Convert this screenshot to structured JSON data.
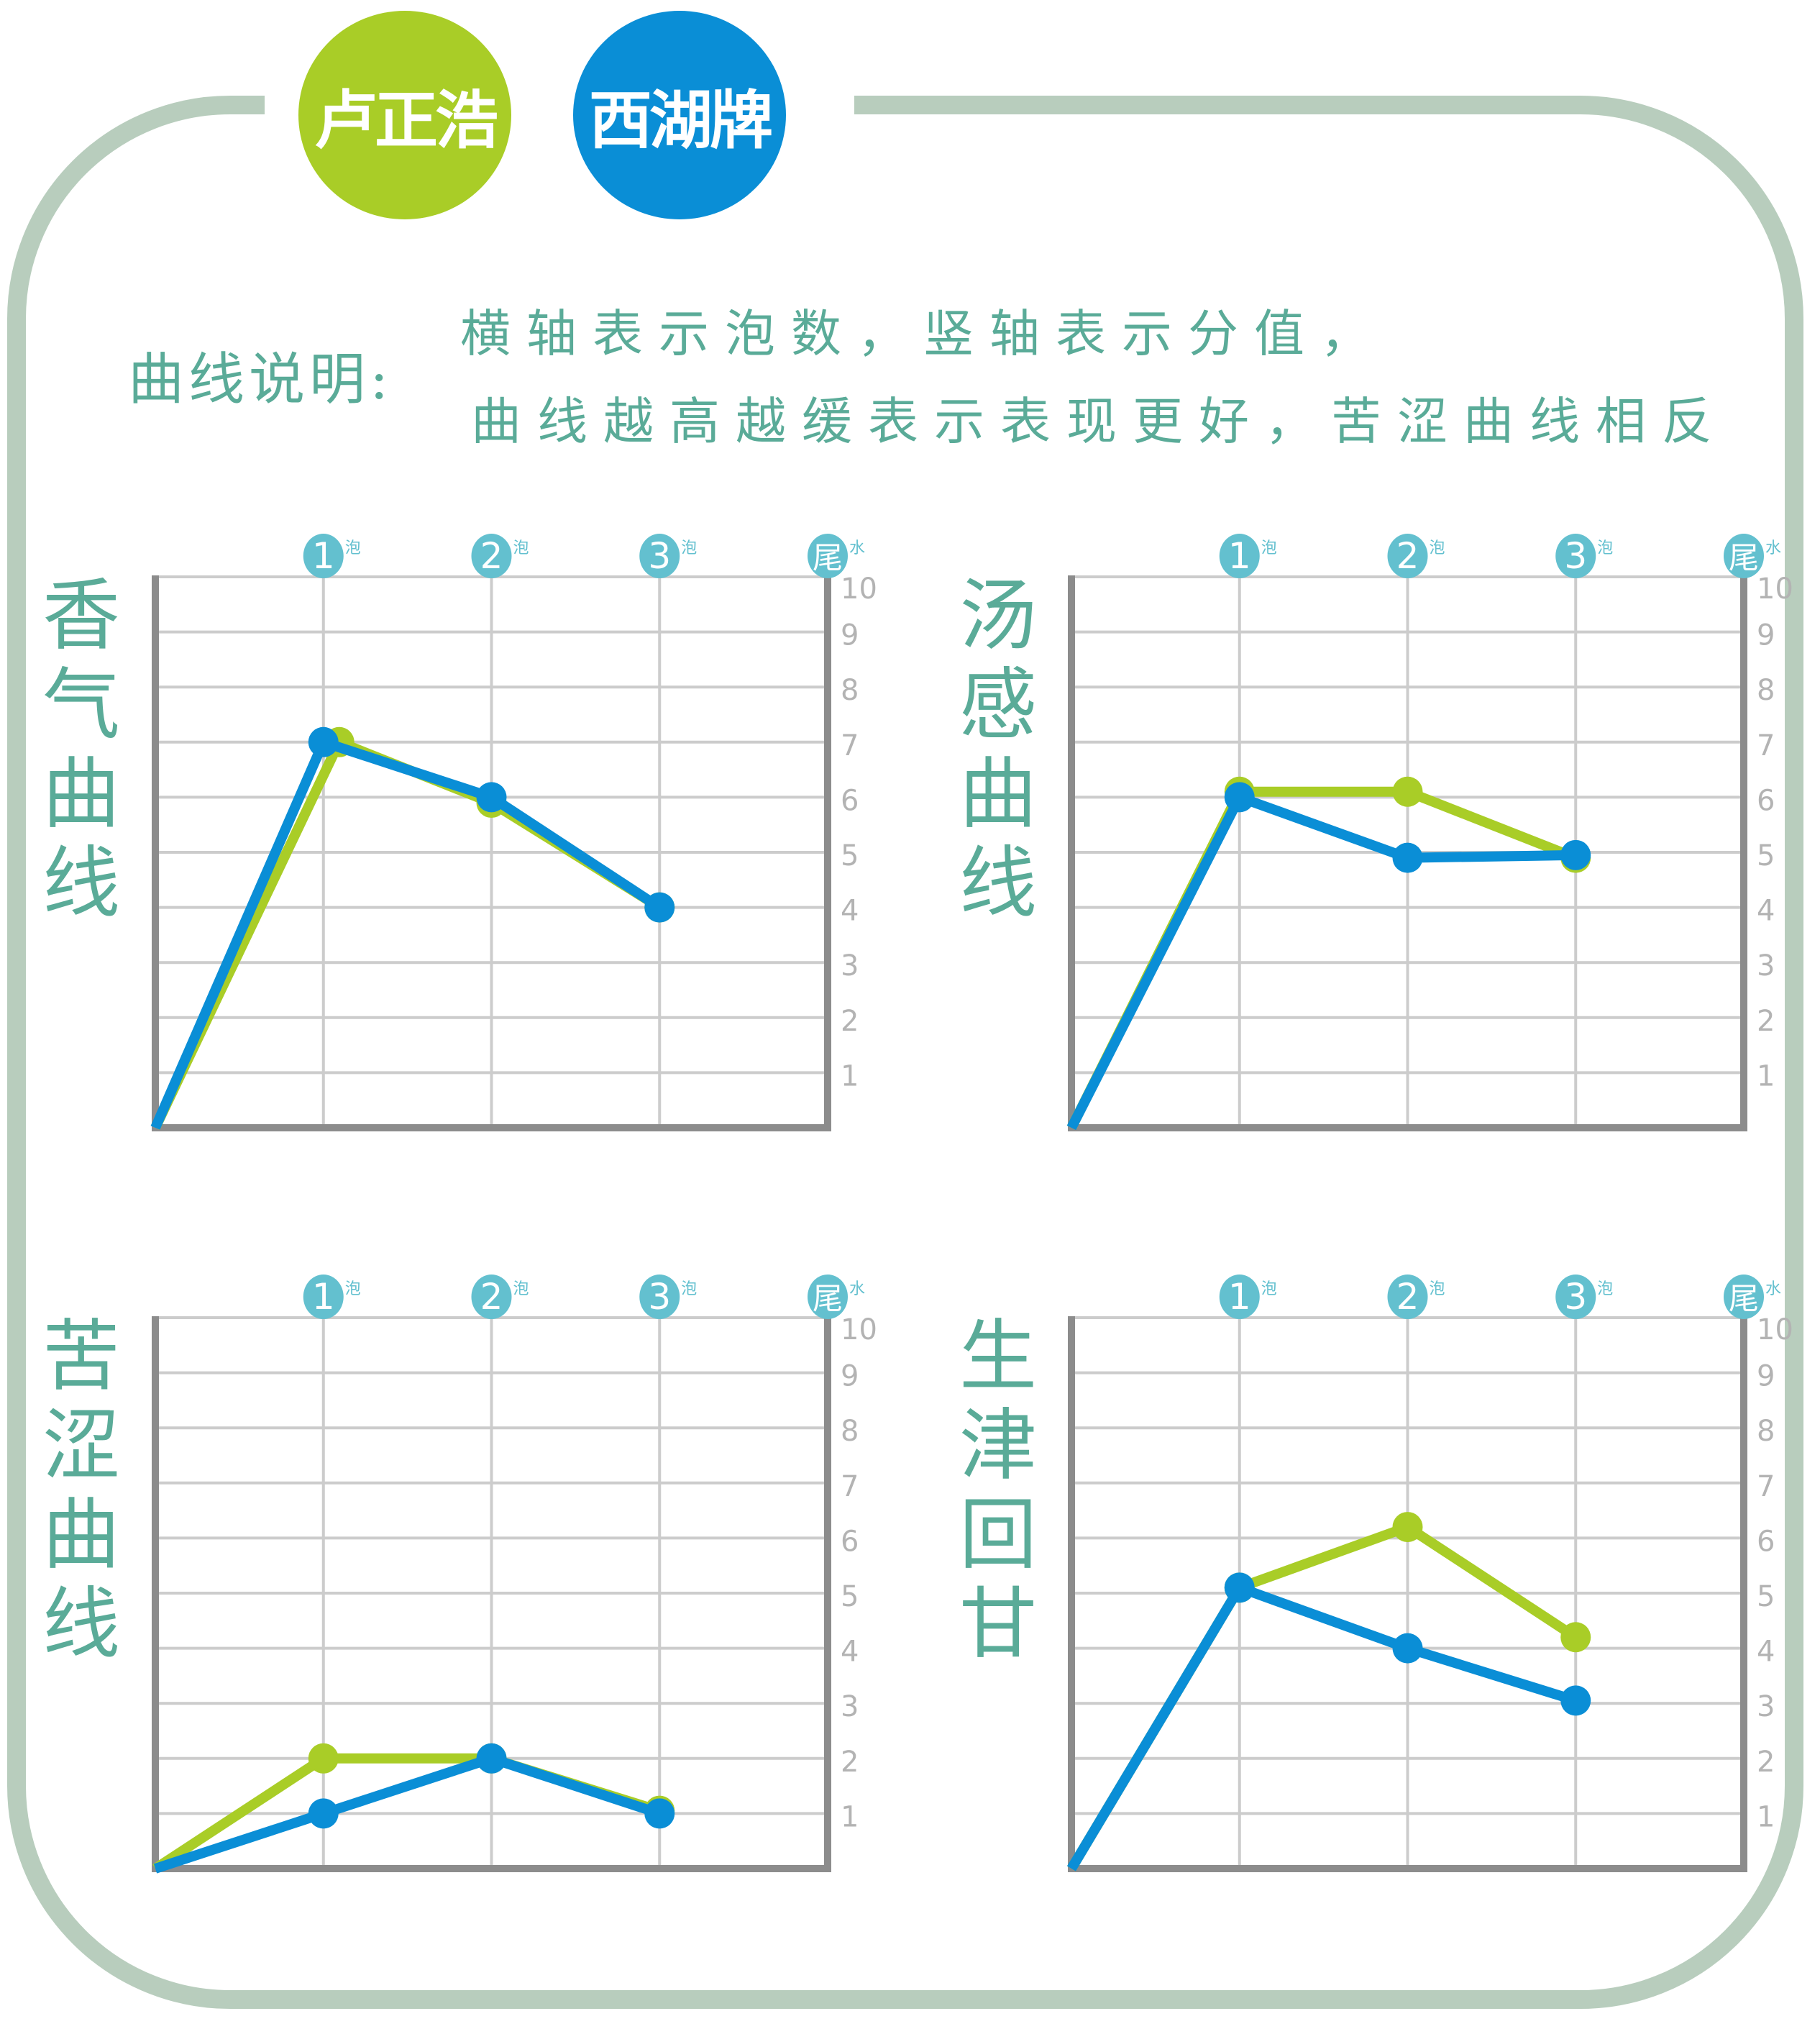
{
  "brands": [
    {
      "label": "卢正浩",
      "color": "#a9cd27"
    },
    {
      "label": "西湖牌",
      "color": "#0a8ed6"
    }
  ],
  "legend": {
    "title": "曲线说明:",
    "line1": "横轴表示泡数，竖轴表示分值，",
    "line2": "曲线越高越缓表示表现更好，苦涩曲线相反"
  },
  "colors": {
    "frame": "#b8cdbd",
    "text": "#5aab98",
    "badge": "#63c0cf",
    "grid": "#cccccc",
    "axis": "#8c8c8c",
    "tick_label": "#b3b3b3"
  },
  "axis": {
    "x_badges": [
      {
        "num": "1",
        "suffix": "泡"
      },
      {
        "num": "2",
        "suffix": "泡"
      },
      {
        "num": "3",
        "suffix": "泡"
      },
      {
        "num": "尾",
        "suffix": "水"
      }
    ],
    "y_ticks": [
      "1",
      "2",
      "3",
      "4",
      "5",
      "6",
      "7",
      "8",
      "9",
      "10"
    ]
  },
  "chart_data": [
    {
      "type": "line",
      "title": "香气曲线",
      "categories": [
        "0",
        "1泡",
        "2泡",
        "3泡",
        "尾水"
      ],
      "xlabel": "泡数",
      "ylabel": "分值",
      "ylim": [
        0,
        10
      ],
      "grid": true,
      "series": [
        {
          "name": "卢正浩",
          "color": "#a9cd27",
          "values": [
            0,
            7.0,
            5.9,
            4.0
          ]
        },
        {
          "name": "西湖牌",
          "color": "#0a8ed6",
          "values": [
            0,
            7.0,
            6.0,
            4.0
          ]
        }
      ]
    },
    {
      "type": "line",
      "title": "汤感曲线",
      "categories": [
        "0",
        "1泡",
        "2泡",
        "3泡",
        "尾水"
      ],
      "xlabel": "泡数",
      "ylabel": "分值",
      "ylim": [
        0,
        10
      ],
      "grid": true,
      "series": [
        {
          "name": "卢正浩",
          "color": "#a9cd27",
          "values": [
            0,
            6.1,
            6.1,
            4.9
          ]
        },
        {
          "name": "西湖牌",
          "color": "#0a8ed6",
          "values": [
            0,
            6.0,
            4.9,
            4.95
          ]
        }
      ]
    },
    {
      "type": "line",
      "title": "苦涩曲线",
      "categories": [
        "0",
        "1泡",
        "2泡",
        "3泡",
        "尾水"
      ],
      "xlabel": "泡数",
      "ylabel": "分值",
      "ylim": [
        0,
        10
      ],
      "grid": true,
      "series": [
        {
          "name": "卢正浩",
          "color": "#a9cd27",
          "values": [
            0,
            2.0,
            2.0,
            1.05
          ]
        },
        {
          "name": "西湖牌",
          "color": "#0a8ed6",
          "values": [
            0,
            1.0,
            2.0,
            1.0
          ]
        }
      ]
    },
    {
      "type": "line",
      "title": "生津回甘",
      "categories": [
        "0",
        "1泡",
        "2泡",
        "3泡",
        "尾水"
      ],
      "xlabel": "泡数",
      "ylabel": "分值",
      "ylim": [
        0,
        10
      ],
      "grid": true,
      "series": [
        {
          "name": "卢正浩",
          "color": "#a9cd27",
          "values": [
            0,
            5.1,
            6.2,
            4.2
          ]
        },
        {
          "name": "西湖牌",
          "color": "#0a8ed6",
          "values": [
            0,
            5.1,
            4.0,
            3.05
          ]
        }
      ]
    }
  ]
}
